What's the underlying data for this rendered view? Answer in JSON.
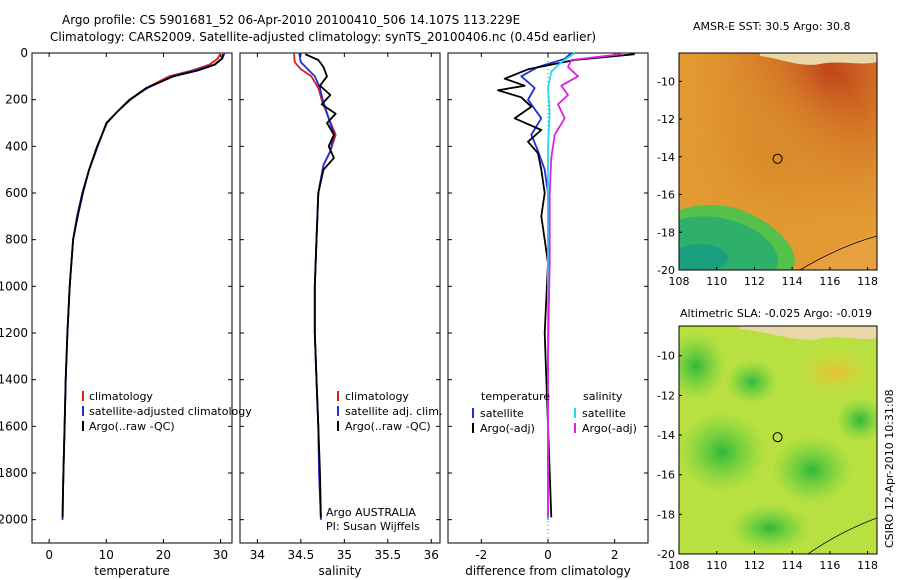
{
  "header": {
    "line1": "Argo profile: CS 5901681_52 06-Apr-2010 20100410_506 14.107S 113.229E",
    "line2": "Climatology: CARS2009. Satellite-adjusted climatology: synTS_20100406.nc (0.45d earlier)"
  },
  "side_stamp": "CSIRO 12-Apr-2010 10:31:08",
  "colors": {
    "climatology": "#e41a1c",
    "satellite": "#1f2fd6",
    "argo": "#000000",
    "satellite_diff": "#22dde8",
    "argo_diff_sal": "#e020e0"
  },
  "chart_data": [
    {
      "type": "line",
      "id": "temperature",
      "xlabel": "temperature",
      "xlim": [
        -3,
        32
      ],
      "ylim": [
        0,
        2100
      ],
      "y_inverted": true,
      "xticks": [
        0,
        10,
        20,
        30
      ],
      "yticks": [
        0,
        200,
        400,
        600,
        800,
        1000,
        1200,
        1400,
        1600,
        1800,
        2000
      ],
      "legend": [
        "climatology",
        "satellite-adjusted climatology",
        "Argo(..raw -QC)"
      ],
      "series": [
        {
          "name": "climatology",
          "color": "#e41a1c",
          "x": [
            30.0,
            29.5,
            28.0,
            25.0,
            21.0,
            17.0,
            14.0,
            12.0,
            10.0,
            8.5,
            7.0,
            5.8,
            4.9,
            4.2,
            3.6,
            3.2,
            2.9,
            2.7,
            2.5,
            2.4,
            2.35
          ],
          "y": [
            0,
            25,
            50,
            75,
            100,
            150,
            200,
            250,
            300,
            400,
            500,
            600,
            700,
            800,
            1000,
            1200,
            1400,
            1600,
            1800,
            1900,
            2000
          ]
        },
        {
          "name": "satellite-adjusted climatology",
          "color": "#1f2fd6",
          "x": [
            30.7,
            30.3,
            28.8,
            25.5,
            21.5,
            17.2,
            14.1,
            12.0,
            10.0,
            8.5,
            7.0,
            5.8,
            4.9,
            4.2,
            3.6,
            3.2,
            2.9,
            2.7,
            2.5,
            2.4,
            2.35
          ],
          "y": [
            0,
            25,
            50,
            75,
            100,
            150,
            200,
            250,
            300,
            400,
            500,
            600,
            700,
            800,
            1000,
            1200,
            1400,
            1600,
            1800,
            1900,
            2000
          ]
        },
        {
          "name": "Argo(..raw -QC)",
          "color": "#000000",
          "x": [
            30.4,
            30.2,
            29.0,
            26.0,
            21.8,
            17.0,
            14.2,
            12.0,
            10.1,
            8.4,
            7.0,
            5.9,
            5.0,
            4.2,
            3.6,
            3.2,
            2.9,
            2.7,
            2.5,
            2.4,
            2.35
          ],
          "y": [
            5,
            25,
            50,
            75,
            100,
            150,
            200,
            250,
            300,
            400,
            500,
            600,
            700,
            800,
            1000,
            1200,
            1400,
            1600,
            1800,
            1900,
            1990
          ]
        }
      ]
    },
    {
      "type": "line",
      "id": "salinity",
      "xlabel": "salinity",
      "xlim": [
        33.8,
        36.1
      ],
      "ylim": [
        0,
        2100
      ],
      "y_inverted": true,
      "xticks": [
        34,
        34.5,
        35,
        35.5,
        36
      ],
      "xticklabels": [
        "34",
        "34.5",
        "35",
        "35.5",
        "36"
      ],
      "legend": [
        "climatology",
        "satellite adj. clim.",
        "Argo(..raw -QC)"
      ],
      "annotation": [
        "Argo AUSTRALIA",
        "PI: Susan Wijffels"
      ],
      "series": [
        {
          "name": "climatology",
          "color": "#e41a1c",
          "x": [
            34.42,
            34.43,
            34.5,
            34.62,
            34.7,
            34.74,
            34.82,
            34.9,
            34.84,
            34.76,
            34.7,
            34.68,
            34.66,
            34.66,
            34.68,
            34.7,
            34.71,
            34.72,
            34.73
          ],
          "y": [
            0,
            40,
            70,
            100,
            150,
            200,
            280,
            350,
            420,
            480,
            600,
            800,
            1000,
            1200,
            1400,
            1600,
            1800,
            1900,
            2000
          ]
        },
        {
          "name": "satellite adj. clim.",
          "color": "#1f2fd6",
          "x": [
            34.48,
            34.5,
            34.58,
            34.66,
            34.72,
            34.75,
            34.82,
            34.88,
            34.84,
            34.76,
            34.7,
            34.68,
            34.66,
            34.66,
            34.68,
            34.7,
            34.71,
            34.72,
            34.73
          ],
          "y": [
            0,
            40,
            70,
            100,
            150,
            200,
            280,
            350,
            420,
            480,
            600,
            800,
            1000,
            1200,
            1400,
            1600,
            1800,
            1900,
            2000
          ]
        },
        {
          "name": "Argo(..raw -QC)",
          "color": "#000000",
          "x": [
            34.55,
            34.7,
            34.76,
            34.8,
            34.72,
            34.84,
            34.74,
            34.9,
            34.8,
            34.88,
            34.82,
            34.88,
            34.76,
            34.7,
            34.68,
            34.66,
            34.66,
            34.68,
            34.7,
            34.72,
            34.73
          ],
          "y": [
            5,
            30,
            60,
            100,
            140,
            180,
            220,
            260,
            300,
            350,
            400,
            450,
            500,
            600,
            800,
            1000,
            1200,
            1400,
            1600,
            1800,
            1990
          ]
        }
      ]
    },
    {
      "type": "line",
      "id": "difference",
      "xlabel": "difference from climatology",
      "xlim": [
        -3,
        3
      ],
      "ylim": [
        0,
        2100
      ],
      "y_inverted": true,
      "xticks": [
        -2,
        0,
        2
      ],
      "legend": {
        "temperature": [
          "temperature",
          "satellite",
          "Argo(-adj)"
        ],
        "salinity": [
          "salinity",
          "satellite",
          "Argo(-adj)"
        ]
      },
      "series": [
        {
          "name": "temperature satellite",
          "color": "#1f2fd6",
          "x": [
            0.7,
            0.5,
            -0.3,
            -0.8,
            -0.4,
            -0.6,
            -0.2,
            -0.5,
            -0.3,
            -0.1,
            0.0,
            0.0,
            0.0,
            0.0,
            0.0,
            0.0
          ],
          "y": [
            0,
            25,
            60,
            100,
            150,
            200,
            280,
            350,
            420,
            500,
            600,
            800,
            1000,
            1400,
            1800,
            2000
          ]
        },
        {
          "name": "temperature Argo(-adj)",
          "color": "#000000",
          "x": [
            2.6,
            0.8,
            -0.6,
            -1.3,
            -0.7,
            -1.5,
            -0.8,
            -0.5,
            -1.0,
            -0.2,
            -0.6,
            -0.3,
            -0.2,
            -0.1,
            -0.2,
            -0.1,
            0.0,
            -0.1,
            0.1
          ],
          "y": [
            5,
            30,
            70,
            110,
            140,
            160,
            190,
            230,
            280,
            330,
            380,
            430,
            500,
            600,
            700,
            800,
            900,
            1200,
            1990
          ]
        },
        {
          "name": "salinity satellite",
          "color": "#22dde8",
          "x": [
            0.8,
            0.4,
            0.1,
            0.0,
            0.05,
            0.0,
            0.0,
            0.0,
            0.0,
            0.0,
            0.0,
            0.0
          ],
          "y": [
            0,
            40,
            80,
            150,
            250,
            400,
            600,
            800,
            1000,
            1400,
            1800,
            2000
          ]
        },
        {
          "name": "salinity Argo(-adj)",
          "color": "#e020e0",
          "x": [
            2.2,
            0.7,
            0.6,
            0.9,
            0.4,
            0.6,
            0.3,
            0.5,
            0.2,
            0.1,
            0.05,
            0.05,
            0.0,
            0.0
          ],
          "y": [
            5,
            30,
            60,
            100,
            140,
            180,
            220,
            280,
            350,
            450,
            600,
            900,
            1300,
            1990
          ]
        }
      ]
    },
    {
      "type": "heatmap",
      "id": "sst_map",
      "title": "AMSR-E SST: 30.5 Argo: 30.8",
      "xlim": [
        108,
        118.5
      ],
      "ylim": [
        -20,
        -8.5
      ],
      "xticks": [
        108,
        110,
        112,
        114,
        116,
        118
      ],
      "yticks": [
        -10,
        -12,
        -14,
        -16,
        -18,
        -20
      ],
      "profile_location": [
        113.229,
        -14.107
      ]
    },
    {
      "type": "heatmap",
      "id": "sla_map",
      "title": "Altimetric SLA: -0.025 Argo: -0.019",
      "xlim": [
        108,
        118.5
      ],
      "ylim": [
        -20,
        -8.5
      ],
      "xticks": [
        108,
        110,
        112,
        114,
        116,
        118
      ],
      "yticks": [
        -10,
        -12,
        -14,
        -16,
        -18,
        -20
      ],
      "profile_location": [
        113.229,
        -14.107
      ]
    }
  ]
}
